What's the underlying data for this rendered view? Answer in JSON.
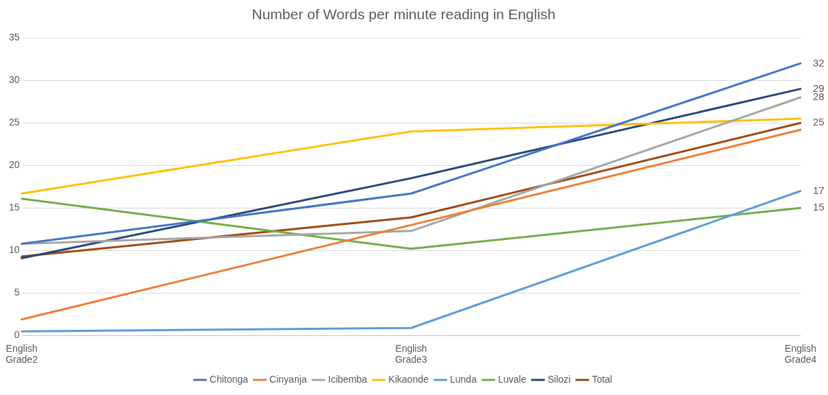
{
  "chart_data": {
    "type": "line",
    "title": "Number of Words per minute reading in English",
    "categories": [
      "English\nGrade2",
      "English\nGrade3",
      "English\nGrade4"
    ],
    "series": [
      {
        "name": "Chitonga",
        "color": "#4472c4",
        "values": [
          10.8,
          16.7,
          32
        ],
        "value_labels": [
          null,
          null,
          "32"
        ]
      },
      {
        "name": "Cinyanja",
        "color": "#ed7d31",
        "values": [
          1.9,
          13,
          24.2
        ]
      },
      {
        "name": "Icibemba",
        "color": "#a5a5a5",
        "values": [
          10.8,
          12.3,
          28
        ],
        "value_labels": [
          null,
          null,
          "28"
        ]
      },
      {
        "name": "Kikaonde",
        "color": "#ffc000",
        "values": [
          16.7,
          24,
          25.5
        ]
      },
      {
        "name": "Lunda",
        "color": "#5b9bd5",
        "values": [
          0.5,
          0.9,
          17
        ],
        "value_labels": [
          null,
          null,
          "17"
        ]
      },
      {
        "name": "Luvale",
        "color": "#70ad47",
        "values": [
          16.1,
          10.2,
          15
        ],
        "value_labels": [
          null,
          null,
          "15"
        ]
      },
      {
        "name": "Silozi",
        "color": "#264478",
        "values": [
          9.1,
          18.5,
          29
        ],
        "value_labels": [
          null,
          null,
          "29"
        ]
      },
      {
        "name": "Total",
        "color": "#9e480e",
        "values": [
          9.3,
          13.9,
          25
        ],
        "value_labels": [
          null,
          null,
          "25"
        ]
      }
    ],
    "ylim": [
      0,
      35
    ],
    "yticks": [
      0,
      5,
      10,
      15,
      20,
      25,
      30,
      35
    ],
    "grid": "y",
    "legend": "bottom",
    "marker": "none",
    "line_style": "solid"
  }
}
